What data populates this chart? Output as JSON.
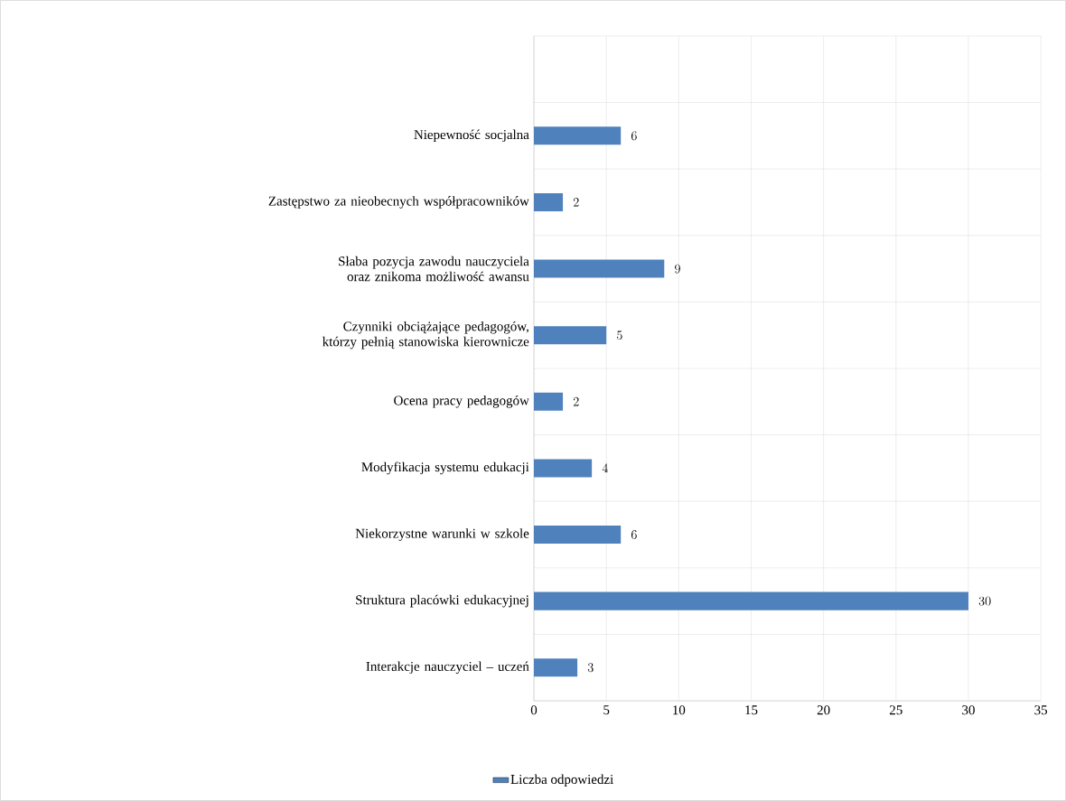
{
  "chart_data": {
    "type": "bar",
    "orientation": "horizontal",
    "categories": [
      null,
      "Niepewność socjalna",
      "Zastępstwo za nieobecnych współpracowników",
      "Słaba pozycja zawodu nauczyciela oraz znikoma możliwość awansu",
      "Czynniki obciążające pedagogów, którzy pełnią stanowiska kierownicze",
      "Ocena pracy pedagogów",
      "Modyfikacja systemu edukacji",
      "Niekorzystne warunki w szkole",
      "Struktura placówki edukacyjnej",
      "Interakcje nauczyciel – uczeń"
    ],
    "series": [
      {
        "name": "Liczba odpowiedzi",
        "color": "#4f81bd",
        "values": [
          null,
          6,
          2,
          9,
          5,
          2,
          4,
          6,
          30,
          3
        ]
      }
    ],
    "xlim": [
      0,
      35
    ],
    "xticks": [
      0,
      5,
      10,
      15,
      20,
      25,
      30,
      35
    ],
    "grid": true,
    "legend": "bottom",
    "data_labels": true
  }
}
